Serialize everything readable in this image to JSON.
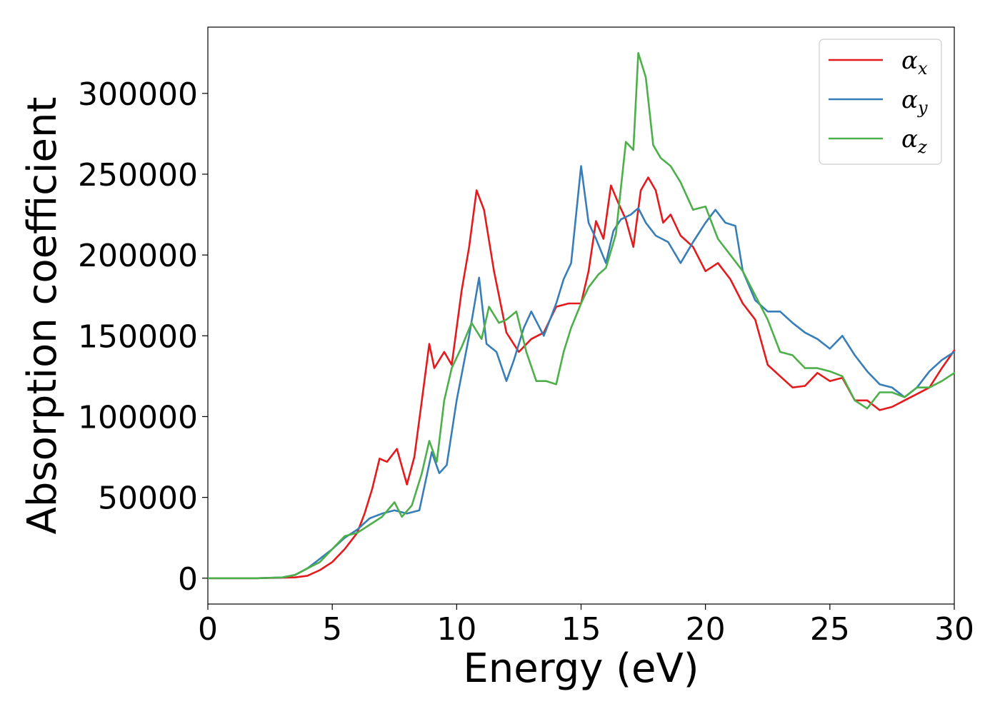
{
  "chart_data": {
    "type": "line",
    "title": "",
    "xlabel": "Energy (eV)",
    "ylabel": "Absorption coefficient",
    "xlim": [
      0,
      30
    ],
    "ylim": [
      -16000,
      341000
    ],
    "x_ticks": [
      0,
      5,
      10,
      15,
      20,
      25,
      30
    ],
    "x_tick_labels": [
      "0",
      "5",
      "10",
      "15",
      "20",
      "25",
      "30"
    ],
    "y_ticks": [
      0,
      50000,
      100000,
      150000,
      200000,
      250000,
      300000
    ],
    "y_tick_labels": [
      "0",
      "50000",
      "100000",
      "150000",
      "200000",
      "250000",
      "300000"
    ],
    "grid": false,
    "legend_position": "top-right",
    "series": [
      {
        "name": "α",
        "subscript": "x",
        "color": "#e41a1c",
        "x": [
          0,
          1,
          2,
          3,
          3.5,
          4,
          4.5,
          5,
          5.5,
          6,
          6.3,
          6.6,
          6.9,
          7.2,
          7.6,
          8.0,
          8.3,
          8.6,
          8.9,
          9.1,
          9.5,
          9.8,
          10.2,
          10.5,
          10.8,
          11.1,
          11.5,
          12.0,
          12.5,
          13.0,
          13.5,
          14.0,
          14.5,
          15.0,
          15.3,
          15.6,
          15.9,
          16.2,
          16.5,
          16.8,
          17.1,
          17.4,
          17.7,
          18.0,
          18.3,
          18.6,
          19.0,
          19.5,
          20.0,
          20.5,
          21.0,
          21.5,
          22.0,
          22.5,
          23.0,
          23.5,
          24.0,
          24.5,
          25.0,
          25.5,
          26.0,
          26.5,
          27.0,
          27.5,
          28.0,
          28.5,
          29.0,
          29.5,
          30.0
        ],
        "values": [
          0,
          0,
          0,
          300,
          500,
          1500,
          5000,
          10000,
          18000,
          28000,
          40000,
          55000,
          74000,
          72000,
          80000,
          58000,
          75000,
          110000,
          145000,
          130000,
          140000,
          132000,
          178000,
          205000,
          240000,
          228000,
          190000,
          152000,
          140000,
          148000,
          152000,
          168000,
          170000,
          170000,
          190000,
          221000,
          210000,
          243000,
          232000,
          222000,
          205000,
          240000,
          248000,
          240000,
          220000,
          225000,
          212000,
          205000,
          190000,
          195000,
          185000,
          170000,
          160000,
          132000,
          125000,
          118000,
          119000,
          127000,
          122000,
          124000,
          110000,
          110000,
          104000,
          106000,
          110000,
          114000,
          118000,
          130000,
          141000
        ]
      },
      {
        "name": "α",
        "subscript": "y",
        "color": "#377eb8",
        "x": [
          0,
          1,
          2,
          3,
          3.5,
          4,
          4.5,
          5,
          5.5,
          6,
          6.5,
          7,
          7.5,
          8,
          8.5,
          9,
          9.3,
          9.6,
          10,
          10.5,
          10.9,
          11.2,
          11.6,
          12.0,
          12.3,
          12.7,
          13.0,
          13.5,
          14.0,
          14.3,
          14.6,
          15.0,
          15.3,
          15.6,
          16.0,
          16.3,
          16.6,
          17.0,
          17.3,
          17.6,
          18.0,
          18.5,
          19.0,
          19.5,
          20.0,
          20.4,
          20.8,
          21.2,
          21.5,
          22.0,
          22.5,
          23.0,
          23.5,
          24.0,
          24.5,
          25.0,
          25.5,
          26.0,
          26.5,
          27.0,
          27.5,
          28.0,
          28.5,
          29.0,
          29.5,
          30.0
        ],
        "values": [
          0,
          0,
          0,
          500,
          2000,
          6000,
          12000,
          18000,
          25000,
          30000,
          37000,
          40000,
          42000,
          40000,
          42000,
          78000,
          65000,
          70000,
          110000,
          150000,
          186000,
          145000,
          140000,
          122000,
          135000,
          155000,
          165000,
          150000,
          170000,
          185000,
          195000,
          255000,
          220000,
          210000,
          195000,
          215000,
          222000,
          225000,
          229000,
          220000,
          212000,
          208000,
          195000,
          208000,
          220000,
          228000,
          220000,
          218000,
          190000,
          172000,
          165000,
          165000,
          158000,
          152000,
          148000,
          142000,
          150000,
          138000,
          128000,
          120000,
          118000,
          112000,
          118000,
          128000,
          135000,
          140000
        ]
      },
      {
        "name": "α",
        "subscript": "z",
        "color": "#4daf4a",
        "x": [
          0,
          1,
          2,
          3,
          3.5,
          4,
          4.5,
          5,
          5.5,
          6,
          6.5,
          7,
          7.5,
          7.8,
          8.2,
          8.6,
          8.9,
          9.2,
          9.5,
          9.8,
          10.2,
          10.6,
          11.0,
          11.3,
          11.7,
          12.0,
          12.4,
          12.8,
          13.2,
          13.6,
          14.0,
          14.3,
          14.6,
          15.0,
          15.3,
          15.7,
          16.0,
          16.4,
          16.8,
          17.1,
          17.3,
          17.6,
          17.9,
          18.2,
          18.6,
          19.0,
          19.5,
          20.0,
          20.5,
          21.0,
          21.5,
          22.0,
          22.5,
          23.0,
          23.5,
          24.0,
          24.5,
          25.0,
          25.5,
          26.0,
          26.5,
          27.0,
          27.5,
          28.0,
          28.5,
          29.0,
          29.5,
          30.0
        ],
        "values": [
          0,
          0,
          0,
          500,
          2000,
          6000,
          10000,
          18000,
          26000,
          28000,
          33000,
          38000,
          47000,
          38000,
          45000,
          65000,
          85000,
          72000,
          110000,
          130000,
          143000,
          158000,
          148000,
          168000,
          158000,
          160000,
          165000,
          140000,
          122000,
          122000,
          120000,
          140000,
          155000,
          170000,
          180000,
          188000,
          192000,
          213000,
          270000,
          265000,
          325000,
          310000,
          268000,
          260000,
          255000,
          245000,
          228000,
          230000,
          210000,
          200000,
          190000,
          175000,
          160000,
          140000,
          138000,
          130000,
          130000,
          128000,
          125000,
          110000,
          105000,
          115000,
          115000,
          112000,
          118000,
          118000,
          122000,
          127000
        ]
      }
    ]
  }
}
